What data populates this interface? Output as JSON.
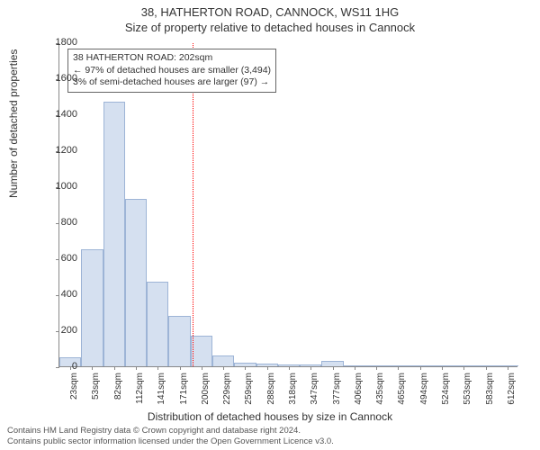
{
  "header": {
    "title": "38, HATHERTON ROAD, CANNOCK, WS11 1HG",
    "subtitle": "Size of property relative to detached houses in Cannock"
  },
  "chart": {
    "type": "histogram",
    "ylabel": "Number of detached properties",
    "xlabel": "Distribution of detached houses by size in Cannock",
    "ylim": [
      0,
      1800
    ],
    "ytick_step": 200,
    "yticks": [
      0,
      200,
      400,
      600,
      800,
      1000,
      1200,
      1400,
      1600,
      1800
    ],
    "xticks": [
      "23sqm",
      "53sqm",
      "82sqm",
      "112sqm",
      "141sqm",
      "171sqm",
      "200sqm",
      "229sqm",
      "259sqm",
      "288sqm",
      "318sqm",
      "347sqm",
      "377sqm",
      "406sqm",
      "435sqm",
      "465sqm",
      "494sqm",
      "524sqm",
      "553sqm",
      "583sqm",
      "612sqm"
    ],
    "bar_color": "#d5e0f0",
    "bar_border": "#9db4d6",
    "values": [
      50,
      650,
      1470,
      930,
      470,
      280,
      170,
      60,
      20,
      15,
      10,
      8,
      30,
      5,
      0,
      0,
      0,
      0,
      0,
      0,
      0
    ],
    "marker_position": 6,
    "marker_color": "#ff0000",
    "background_color": "#ffffff",
    "axis_color": "#888888"
  },
  "annotation": {
    "line1": "38 HATHERTON ROAD: 202sqm",
    "line2": "← 97% of detached houses are smaller (3,494)",
    "line3": "3% of semi-detached houses are larger (97) →"
  },
  "footer": {
    "line1": "Contains HM Land Registry data © Crown copyright and database right 2024.",
    "line2": "Contains public sector information licensed under the Open Government Licence v3.0."
  }
}
